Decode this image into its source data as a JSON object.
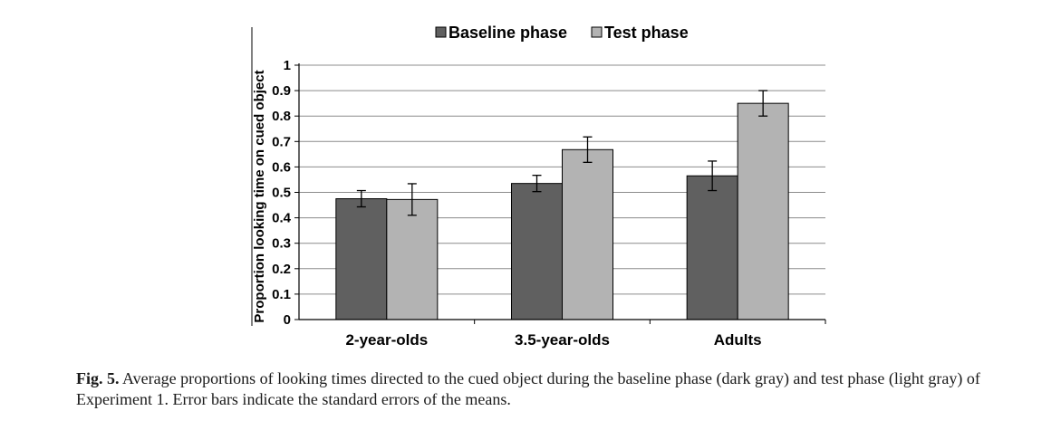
{
  "chart_data": {
    "type": "bar",
    "categories": [
      "2-year-olds",
      "3.5-year-olds",
      "Adults"
    ],
    "series": [
      {
        "name": "Baseline phase",
        "color": "#606060",
        "values": [
          0.475,
          0.535,
          0.565
        ],
        "errors": [
          0.032,
          0.032,
          0.058
        ]
      },
      {
        "name": "Test phase",
        "color": "#b3b3b3",
        "values": [
          0.472,
          0.668,
          0.85
        ],
        "errors": [
          0.062,
          0.05,
          0.05
        ]
      }
    ],
    "ylabel": "Proportion looking time on cued object",
    "xlabel": "",
    "ylim": [
      0,
      1
    ],
    "yticks": [
      "0",
      "0.1",
      "0.2",
      "0.3",
      "0.4",
      "0.5",
      "0.6",
      "0.7",
      "0.8",
      "0.9",
      "1"
    ],
    "grid": true,
    "legend_position": "top"
  },
  "caption": {
    "label": "Fig. 5.",
    "text": " Average proportions of looking times directed to the cued object during the baseline phase (dark gray) and test phase (light gray) of Experiment 1. Error bars indicate the standard errors of the means."
  }
}
